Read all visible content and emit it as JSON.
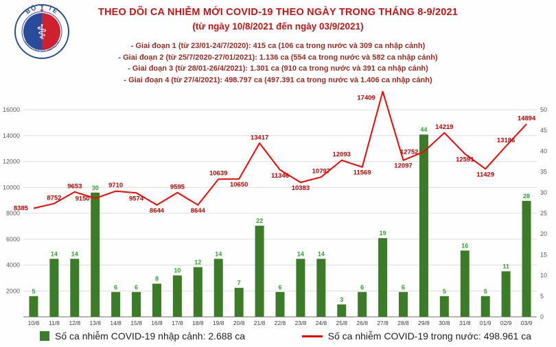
{
  "logo": {
    "ring_top": "BỘ Y TẾ",
    "ring_bottom": "MINISTRY OF HEALTH",
    "star": "★",
    "symbol": "⚕"
  },
  "header": {
    "title": "THEO DÕI CA NHIỄM MỚI COVID-19 THEO NGÀY TRONG THÁNG 8-9/2021",
    "subtitle": "(từ ngày 10/8/2021 đến ngày 03/9/2021)",
    "bullets": [
      "- Giai đoạn 1 (từ 23/01-24/7/2020): 415 ca (106 ca trong nước và 309 ca nhập cảnh)",
      "- Giai đoạn 2 (từ 25/7/2020-27/01/2021): 1.136 ca (554 ca trong nước và 582 ca nhập cảnh)",
      "- Giai đoạn 3 (từ 28/01-26/4/2021): 1.301 ca (910 ca trong nước và 391 ca nhập cảnh)",
      "- Giai đoạn 4 (từ 27/4/2021): 498.797 ca (497.391 ca trong nước và 1.406 ca nhập cảnh)"
    ]
  },
  "legend": {
    "imported": "Số ca nhiễm COVID-19 nhập cảnh: 2.688 ca",
    "domestic": "Số ca nhiễm COVID-19 trong nước: 498.961 ca"
  },
  "colors": {
    "bar": "#3c7b27",
    "bar_label": "#35a12f",
    "line": "#ff0000",
    "line_label": "#c00000",
    "title": "#c41616",
    "bullet": "#9c2b24",
    "grid": "#dcdcdc",
    "axis_text": "#595959"
  },
  "chart_data": {
    "type": "combo",
    "categories": [
      "10/8",
      "11/8",
      "12/8",
      "13/8",
      "14/8",
      "15/8",
      "16/8",
      "17/8",
      "18/8",
      "19/8",
      "20/8",
      "21/8",
      "22/8",
      "23/8",
      "24/8",
      "25/8",
      "26/8",
      "27/8",
      "28/8",
      "29/8",
      "30/8",
      "31/8",
      "01/9",
      "02/9",
      "03/9"
    ],
    "series": [
      {
        "name": "Số ca nhiễm COVID-19 nhập cảnh",
        "type": "bar",
        "axis": "right",
        "values": [
          5,
          14,
          14,
          30,
          6,
          6,
          8,
          10,
          12,
          14,
          7,
          22,
          6,
          14,
          14,
          3,
          6,
          19,
          6,
          44,
          5,
          16,
          5,
          11,
          28
        ]
      },
      {
        "name": "Số ca nhiễm COVID-19 trong nước",
        "type": "line",
        "axis": "left",
        "values": [
          8385,
          8752,
          9653,
          9150,
          9710,
          9574,
          8644,
          9595,
          8644,
          10639,
          10650,
          13417,
          11346,
          10383,
          10797,
          12093,
          11569,
          17409,
          12097,
          12752,
          14219,
          12591,
          11429,
          13186,
          14894
        ]
      }
    ],
    "left_axis": {
      "min": 0,
      "max": 16000,
      "step": 2000
    },
    "right_axis": {
      "min": 0,
      "max": 50,
      "step": 5
    },
    "grid": true,
    "legend_position": "bottom",
    "line_label_positions": [
      "left",
      "above",
      "above",
      "left",
      "above",
      "below",
      "below",
      "above",
      "below",
      "above",
      "below",
      "above",
      "below",
      "below",
      "above",
      "above",
      "below",
      "above",
      "below",
      "left",
      "above",
      "below",
      "below",
      "above",
      "above"
    ]
  }
}
